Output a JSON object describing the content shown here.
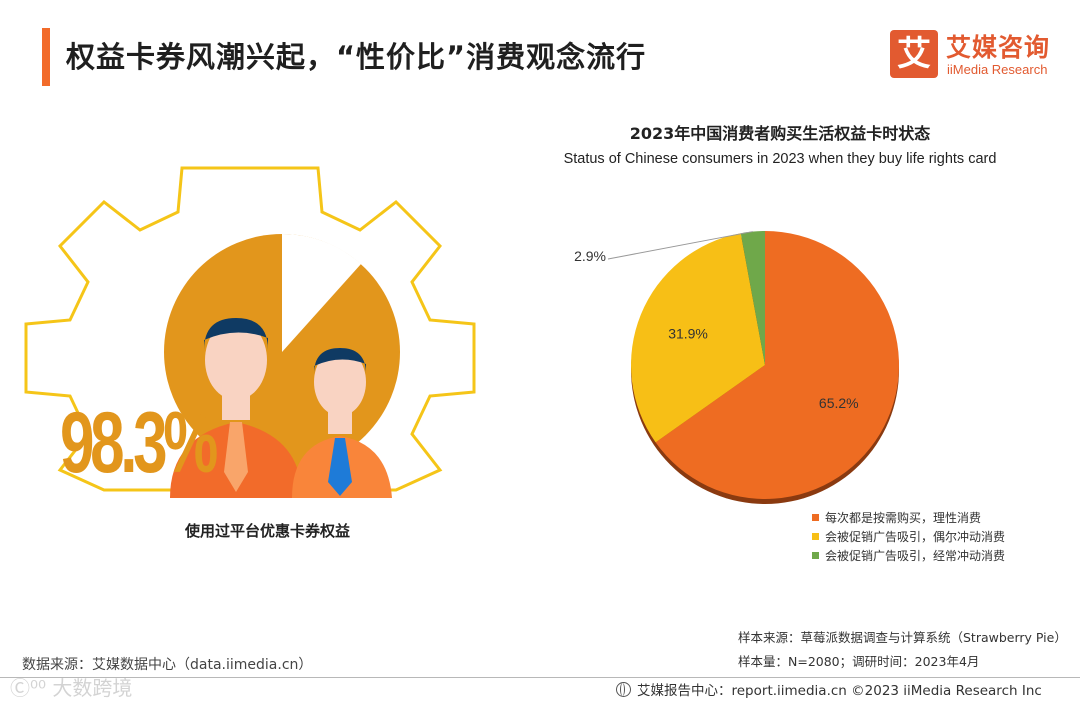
{
  "header": {
    "title": "权益卡券风潮兴起，“性价比”消费观念流行",
    "brand_logo_char": "艾",
    "brand_cn": "艾媒咨询",
    "brand_en": "iiMedia Research",
    "accent_color": "#f26b2a"
  },
  "left_panel": {
    "percent_label": "98.3%",
    "percent_value": 98.3,
    "caption": "使用过平台优惠卡券权益",
    "colors": {
      "pie": "#e2961c",
      "gear": "#f5c518",
      "shirt": "#f26b2a"
    },
    "icons": [
      "gear-icon",
      "person-icon"
    ]
  },
  "chart_title_cn": "2023年中国消费者购买生活权益卡时状态",
  "chart_title_en": "Status of Chinese consumers in 2023 when they buy life rights card",
  "chart_data": {
    "type": "pie",
    "title": "2023年中国消费者购买生活权益卡时状态",
    "subtitle": "Status of Chinese consumers in 2023 when they buy life rights card",
    "legend_position": "bottom-right",
    "slices": [
      {
        "label": "每次都是按需购买，理性消费",
        "value": 65.2,
        "display": "65.2%",
        "color": "#ee6c22"
      },
      {
        "label": "会被促销广告吸引，偶尔冲动消费",
        "value": 31.9,
        "display": "31.9%",
        "color": "#f7bf16"
      },
      {
        "label": "会被促销广告吸引，经常冲动消费",
        "value": 2.9,
        "display": "2.9%",
        "color": "#6fa84a"
      }
    ]
  },
  "sample_source": "样本来源：草莓派数据调查与计算系统（Strawberry Pie）",
  "sample_size": "样本量：N=2080；调研时间：2023年4月",
  "data_source": "数据来源：艾媒数据中心（data.iimedia.cn）",
  "footer": {
    "text": "艾媒报告中心：report.iimedia.cn  ©2023  iiMedia Research  Inc",
    "watermark": "Ⓒ⁰⁰ 大数跨境"
  }
}
